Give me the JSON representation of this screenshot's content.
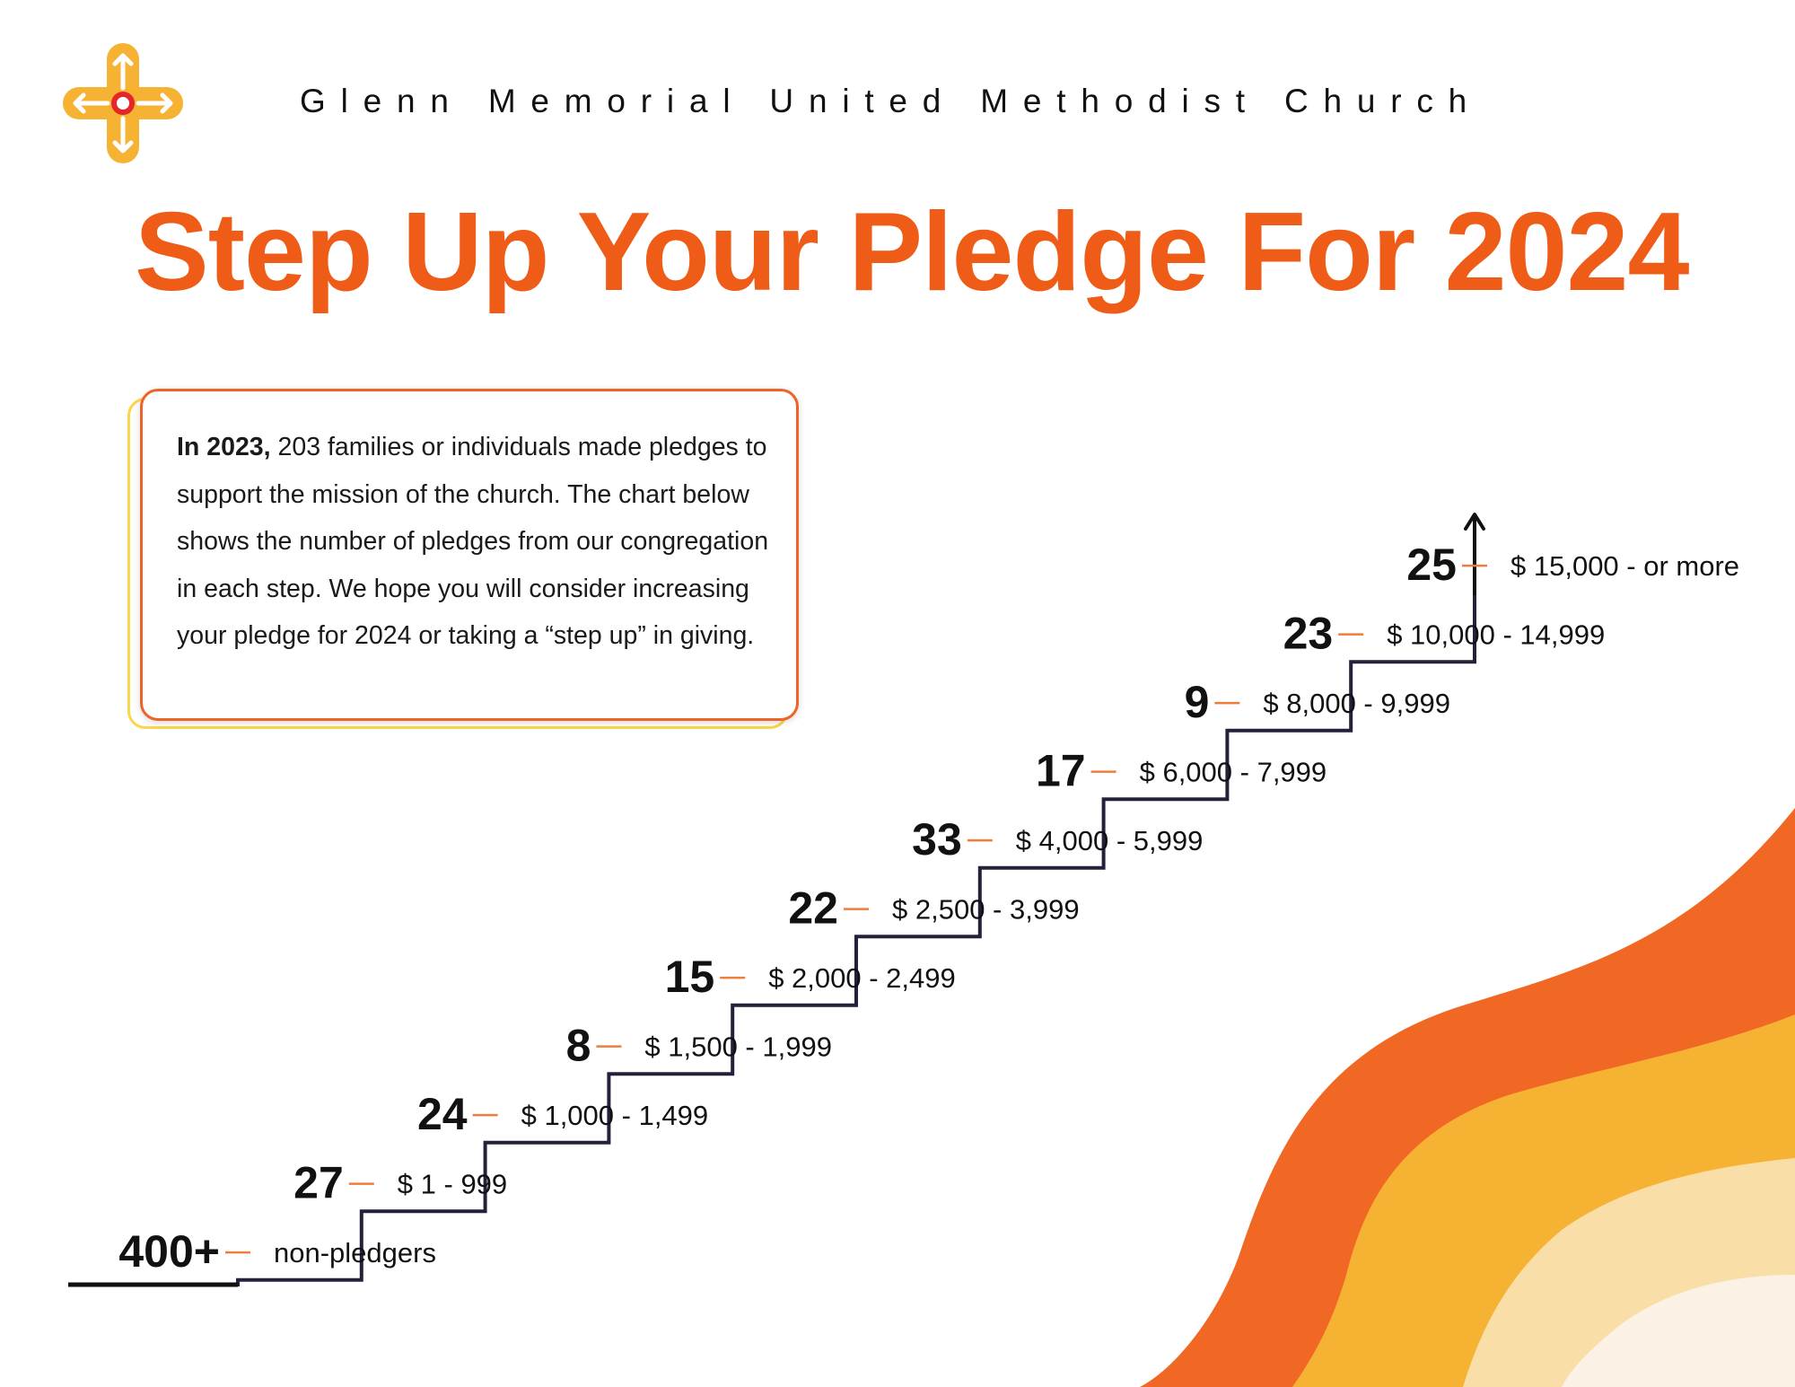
{
  "header": {
    "organization": "Glenn Memorial United Methodist Church",
    "title": "Step Up Your Pledge For 2024"
  },
  "info": {
    "lead": "In 2023,",
    "body": "203 families or individuals made pledges to support the mission of the church. The chart below shows the number of pledges from our congregation in each step. We hope you will consider increasing your pledge for 2024 or taking a “step up” in giving."
  },
  "logo": {
    "icon": "cross-arrows-logo-icon"
  },
  "colors": {
    "title": "#ef5c17",
    "leader_line": "#f07c3c",
    "wave_1": "#f06823",
    "wave_2": "#f6b233",
    "wave_3": "#f9dfa7",
    "wave_4": "#fbf1e4"
  },
  "chart_data": {
    "type": "bar",
    "categories": [
      "non-pledgers",
      "$ 1 - 999",
      "$ 1,000 - 1,499",
      "$ 1,500 - 1,999",
      "$ 2,000 - 2,499",
      "$ 2,500 - 3,999",
      "$ 4,000 - 5,999",
      "$ 6,000 - 7,999",
      "$ 8,000 - 9,999",
      "$ 10,000 - 14,999",
      "$ 15,000 - or more"
    ],
    "values": [
      400,
      27,
      24,
      8,
      15,
      22,
      33,
      17,
      9,
      23,
      25
    ],
    "value_labels": [
      "400+",
      "27",
      "24",
      "8",
      "15",
      "22",
      "33",
      "17",
      "9",
      "23",
      "25"
    ],
    "style": "staircase"
  }
}
